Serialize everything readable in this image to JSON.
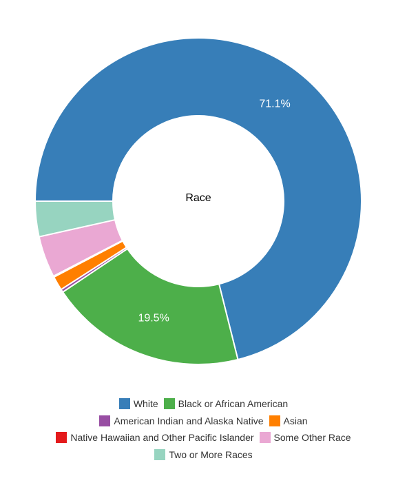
{
  "chart_data": {
    "type": "pie",
    "donut": true,
    "center_label": "Race",
    "slices": [
      {
        "label": "White",
        "value": 71.1,
        "color": "#377eb8",
        "data_label": "71.1%"
      },
      {
        "label": "Black or African American",
        "value": 19.5,
        "color": "#4daf4a",
        "data_label": "19.5%"
      },
      {
        "label": "American Indian and Alaska Native",
        "value": 0.3,
        "color": "#984ea3",
        "data_label": ""
      },
      {
        "label": "Asian",
        "value": 1.4,
        "color": "#ff7f00",
        "data_label": ""
      },
      {
        "label": "Native Hawaiian and Other Pacific Islander",
        "value": 0.1,
        "color": "#e41a1c",
        "data_label": ""
      },
      {
        "label": "Some Other Race",
        "value": 4.1,
        "color": "#eaa8d3",
        "data_label": ""
      },
      {
        "label": "Two or More Races",
        "value": 3.5,
        "color": "#97d4c0",
        "data_label": ""
      }
    ],
    "legend_placement": "bottom"
  }
}
